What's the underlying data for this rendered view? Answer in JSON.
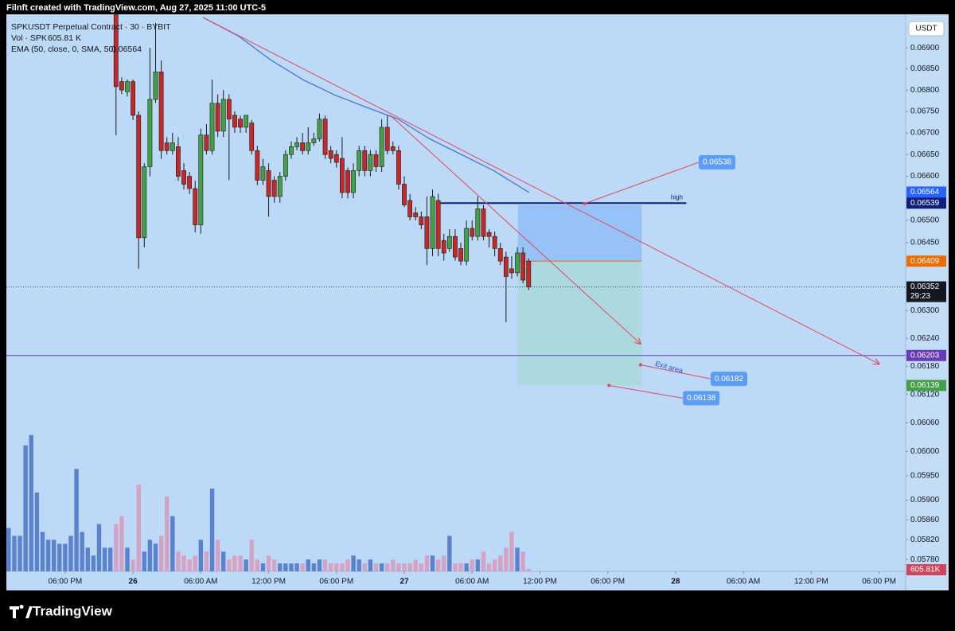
{
  "chart_data": {
    "type": "candlestick",
    "header": "Filnft created with TradingView.com, Aug 27, 2025 11:00 UTC-5",
    "symbol": "SPKUSDT Perpetual Contract · 30 · BYBIT",
    "currency": "USDT",
    "up_color": "#43a047",
    "down_color": "#c62828",
    "open": [
      null,
      null,
      null,
      null,
      null,
      null,
      null,
      null,
      null,
      null,
      null,
      null,
      null,
      null,
      null,
      null,
      null,
      null,
      null,
      0.07,
      0.0682,
      0.06796,
      0.0682,
      0.06741,
      0.06461,
      0.06622,
      0.06778,
      0.06843,
      0.06677,
      0.06659,
      0.06668,
      0.06613,
      0.066,
      0.06572,
      0.0649,
      0.06695,
      0.06659,
      0.06769,
      0.06704,
      0.06778,
      0.06741,
      0.06732,
      0.06713,
      0.06723,
      0.06659,
      0.06591,
      0.06613,
      0.06591,
      0.06554,
      0.066,
      0.0665,
      0.06668,
      0.06677,
      0.06659,
      0.06677,
      0.06686,
      0.06732,
      0.06659,
      0.0665,
      0.06641,
      0.06613,
      0.06563,
      0.06613,
      0.06659,
      0.06613,
      0.0665,
      0.06622,
      0.06713,
      0.06668,
      0.06659,
      0.06582,
      0.06545,
      0.06517,
      0.06508,
      0.06508,
      0.06437,
      0.06545,
      0.06455,
      0.06437,
      0.06464,
      0.06437,
      0.06409,
      0.06482,
      0.06464,
      0.06526,
      0.06473,
      0.06464,
      0.06437,
      0.06418,
      0.06392,
      0.06383,
      0.06427,
      0.06409
    ],
    "high": [
      null,
      null,
      null,
      null,
      null,
      null,
      null,
      null,
      null,
      null,
      null,
      null,
      null,
      null,
      null,
      null,
      null,
      null,
      null,
      0.0705,
      0.0683,
      0.06825,
      0.06825,
      0.0675,
      0.0663,
      0.069,
      0.0696,
      0.0687,
      0.0669,
      0.067,
      0.0669,
      0.0663,
      0.0661,
      0.0659,
      0.0671,
      0.0672,
      0.06825,
      0.0679,
      0.068,
      0.0679,
      0.0675,
      0.0674,
      0.0674,
      0.0673,
      0.0667,
      0.0664,
      0.0663,
      0.066,
      0.0661,
      0.0666,
      0.0668,
      0.0669,
      0.067,
      0.06713,
      0.067,
      0.06745,
      0.0674,
      0.0667,
      0.0666,
      0.0669,
      0.0662,
      0.0663,
      0.0667,
      0.0667,
      0.0666,
      0.0666,
      0.06732,
      0.0674,
      0.0668,
      0.0667,
      0.066,
      0.0656,
      0.0653,
      0.0652,
      0.06554,
      0.0657,
      0.0656,
      0.0647,
      0.0648,
      0.0648,
      0.0645,
      0.065,
      0.065,
      0.06554,
      0.06535,
      0.0648,
      0.06475,
      0.0645,
      0.0643,
      0.0642,
      0.0644,
      0.0644,
      0.06415
    ],
    "low": [
      null,
      null,
      null,
      null,
      null,
      null,
      null,
      null,
      null,
      null,
      null,
      null,
      null,
      null,
      null,
      null,
      null,
      null,
      null,
      0.06695,
      0.0679,
      0.06785,
      0.0673,
      0.06392,
      0.0644,
      0.066,
      0.0677,
      0.0664,
      0.0665,
      0.0665,
      0.0659,
      0.0657,
      0.0656,
      0.06473,
      0.0647,
      0.0665,
      0.0665,
      0.0669,
      0.0669,
      0.06591,
      0.067,
      0.067,
      0.067,
      0.0665,
      0.0658,
      0.0658,
      0.06508,
      0.0654,
      0.0654,
      0.0659,
      0.0664,
      0.0666,
      0.0665,
      0.0665,
      0.0667,
      0.0668,
      0.0664,
      0.0663,
      0.0662,
      0.0655,
      0.0655,
      0.0655,
      0.066,
      0.066,
      0.066,
      0.0661,
      0.0661,
      0.0665,
      0.0665,
      0.0657,
      0.0653,
      0.065,
      0.065,
      0.0648,
      0.064,
      0.0642,
      0.0642,
      0.0641,
      0.0643,
      0.0641,
      0.064,
      0.064,
      0.06455,
      0.06455,
      0.06455,
      0.0644,
      0.0642,
      0.064,
      0.06275,
      0.0637,
      0.06375,
      0.0636,
      0.06345
    ],
    "close": [
      null,
      null,
      null,
      null,
      null,
      null,
      null,
      null,
      null,
      null,
      null,
      null,
      null,
      null,
      null,
      null,
      null,
      null,
      null,
      0.06808,
      0.068,
      0.0682,
      0.06741,
      0.06461,
      0.06622,
      0.06778,
      0.06843,
      0.06659,
      0.06659,
      0.06677,
      0.066,
      0.06582,
      0.06572,
      0.0649,
      0.06695,
      0.06659,
      0.06769,
      0.06704,
      0.06778,
      0.06732,
      0.06713,
      0.06713,
      0.06741,
      0.06659,
      0.06591,
      0.06622,
      0.06554,
      0.06554,
      0.066,
      0.0665,
      0.06668,
      0.06677,
      0.06659,
      0.06677,
      0.06686,
      0.06732,
      0.0665,
      0.06641,
      0.06632,
      0.06563,
      0.06563,
      0.06613,
      0.06659,
      0.06613,
      0.0665,
      0.06622,
      0.06713,
      0.06659,
      0.06659,
      0.06582,
      0.06535,
      0.06508,
      0.06508,
      0.0649,
      0.06437,
      0.06554,
      0.06437,
      0.06427,
      0.06464,
      0.06418,
      0.06409,
      0.06482,
      0.06464,
      0.06526,
      0.06464,
      0.06464,
      0.06437,
      0.06409,
      0.06375,
      0.06383,
      0.06427,
      0.06367,
      0.06352
    ],
    "volume": {
      "name": "Vol · SPK",
      "legend_label": "605.81 K",
      "axis_label": "605.81K",
      "up_color": "#5b82cf",
      "down_color": "#d4a3c4",
      "axis_color": "#d1455c",
      "values": [
        11000,
        9000,
        9000,
        32000,
        34600,
        20000,
        10000,
        8000,
        8000,
        7000,
        7000,
        9000,
        26000,
        10000,
        6000,
        4000,
        12000,
        6000,
        6000,
        12000,
        14000,
        6000,
        3000,
        22000,
        5000,
        8000,
        7000,
        9000,
        19000,
        14000,
        5000,
        4000,
        3000,
        4000,
        8000,
        5000,
        21000,
        8000,
        5000,
        3000,
        4000,
        4000,
        3000,
        8000,
        3000,
        2000,
        4000,
        3000,
        2000,
        2000,
        2000,
        2000,
        2000,
        3000,
        2000,
        3000,
        3000,
        2000,
        2000,
        2000,
        3000,
        4000,
        3000,
        2000,
        3000,
        2000,
        2000,
        2000,
        3000,
        2000,
        2000,
        2000,
        3000,
        2000,
        4000,
        4000,
        3000,
        4000,
        9000,
        2000,
        2000,
        2000,
        3000,
        3000,
        5000,
        2000,
        3000,
        4000,
        6000,
        10000,
        6000,
        5000,
        605.81
      ]
    },
    "volume_ylim": [
      0,
      40000
    ],
    "ema": {
      "name": "EMA (50, close, 0, SMA, 50)",
      "value": 0.06564,
      "color": "#3d6fd6",
      "x": [
        34.4,
        40.7,
        46.3,
        52.0,
        57.6,
        63.2,
        68.9,
        74.5,
        80.1,
        85.8,
        92.1
      ],
      "values": [
        0.06973,
        0.06928,
        0.06872,
        0.06825,
        0.06789,
        0.0676,
        0.06732,
        0.06686,
        0.0665,
        0.06613,
        0.06563
      ]
    },
    "log_scale": true,
    "xlim": [
      -0.4,
      158.7
    ],
    "xticks": [
      {
        "value": 10,
        "label": "06:00 PM"
      },
      {
        "value": 22,
        "label": "26"
      },
      {
        "value": 34,
        "label": "06:00 AM"
      },
      {
        "value": 46,
        "label": "12:00 PM"
      },
      {
        "value": 58,
        "label": "06:00 PM"
      },
      {
        "value": 70,
        "label": "27"
      },
      {
        "value": 82,
        "label": "06:00 AM"
      },
      {
        "value": 94,
        "label": "12:00 PM"
      },
      {
        "value": 106,
        "label": "06:00 PM"
      },
      {
        "value": 118,
        "label": "28"
      },
      {
        "value": 130,
        "label": "06:00 AM"
      },
      {
        "value": 142,
        "label": "12:00 PM"
      },
      {
        "value": 154,
        "label": "06:00 PM"
      }
    ],
    "ylim": [
      0.05758,
      0.06973
    ],
    "yticks": [
      {
        "value": 0.069,
        "label": "0.06900"
      },
      {
        "value": 0.0685,
        "label": "0.06850"
      },
      {
        "value": 0.068,
        "label": "0.06800"
      },
      {
        "value": 0.0675,
        "label": "0.06750"
      },
      {
        "value": 0.067,
        "label": "0.06700"
      },
      {
        "value": 0.0665,
        "label": "0.06650"
      },
      {
        "value": 0.066,
        "label": "0.06600"
      },
      {
        "value": 0.065,
        "label": "0.06500"
      },
      {
        "value": 0.0645,
        "label": "0.06450"
      },
      {
        "value": 0.063,
        "label": "0.06300"
      },
      {
        "value": 0.0624,
        "label": "0.06240"
      },
      {
        "value": 0.0618,
        "label": "0.06180"
      },
      {
        "value": 0.0612,
        "label": "0.06120"
      },
      {
        "value": 0.0606,
        "label": "0.06060"
      },
      {
        "value": 0.06,
        "label": "0.06000"
      },
      {
        "value": 0.0595,
        "label": "0.05950"
      },
      {
        "value": 0.059,
        "label": "0.05900"
      },
      {
        "value": 0.0586,
        "label": "0.05860"
      },
      {
        "value": 0.0582,
        "label": "0.05820"
      },
      {
        "value": 0.0578,
        "label": "0.05780"
      }
    ],
    "grid": false,
    "price_labels": [
      {
        "value": 0.06564,
        "color": "#2962ff"
      },
      {
        "value": 0.06539,
        "color": "#0d1f7a"
      },
      {
        "value": 0.06409,
        "color": "#ef6c00"
      },
      {
        "value": 0.06352,
        "countdown": "29:23",
        "color": "#131722"
      },
      {
        "value": 0.06203,
        "color": "#673ab7"
      },
      {
        "value": 0.06139,
        "color": "#43a047"
      }
    ],
    "drawings": {
      "trendlines": [
        {
          "x": [
            34.4,
            154.0
          ],
          "y": [
            0.06973,
            0.06185
          ]
        },
        {
          "x": [
            67.5,
            111.8
          ],
          "y": [
            0.06741,
            0.06228
          ]
        }
      ],
      "high_line": {
        "label": "high",
        "value": 0.06539,
        "x": [
          76.4,
          119.9
        ]
      },
      "level": {
        "value": 0.06203
      },
      "position": {
        "x": [
          90.1,
          112.0
        ],
        "stop": 0.06535,
        "entry": 0.06409,
        "target": 0.06139
      },
      "callouts": [
        {
          "value": 0.06538,
          "anchor": [
            101.9,
            0.06538
          ],
          "box": [
            122.1,
            0.06632
          ]
        },
        {
          "value": 0.06182,
          "anchor": [
            111.8,
            0.06183
          ],
          "box": [
            124.2,
            0.06153
          ]
        },
        {
          "value": 0.06138,
          "anchor": [
            106.2,
            0.06139
          ],
          "box": [
            119.3,
            0.06112
          ]
        }
      ],
      "exit_note": {
        "label": "Exit area",
        "at": [
          114.4,
          0.06185
        ]
      }
    }
  },
  "footer": {
    "brand": "TradingView"
  }
}
